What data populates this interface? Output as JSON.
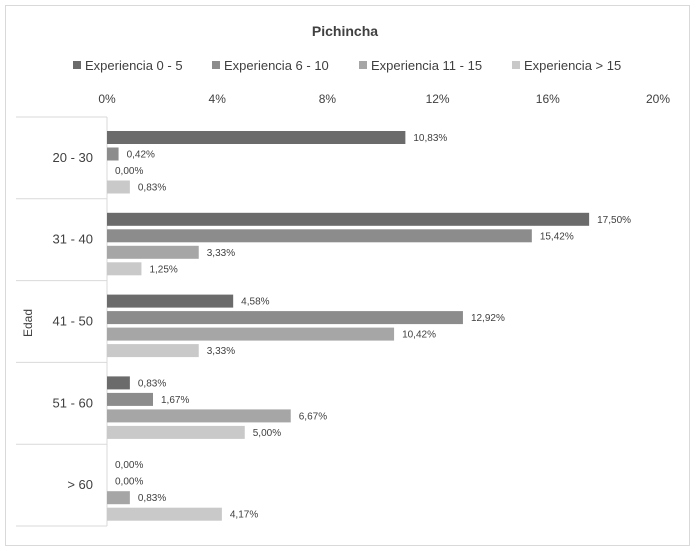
{
  "chart_data": {
    "type": "bar",
    "orientation": "horizontal",
    "title": "Pichincha",
    "ylabel": "Edad",
    "xlabel": "",
    "categories": [
      "20 - 30",
      "31 - 40",
      "41 - 50",
      "51 - 60",
      "> 60"
    ],
    "series": [
      {
        "name": "Experiencia 0 - 5",
        "values": [
          10.83,
          17.5,
          4.58,
          0.83,
          0.0
        ],
        "labels": [
          "10,83%",
          "17,50%",
          "4,58%",
          "0,83%",
          "0,00%"
        ],
        "color": "#6b6b6b"
      },
      {
        "name": "Experiencia 6 - 10",
        "values": [
          0.42,
          15.42,
          12.92,
          1.67,
          0.0
        ],
        "labels": [
          "0,42%",
          "15,42%",
          "12,92%",
          "1,67%",
          "0,00%"
        ],
        "color": "#8c8c8c"
      },
      {
        "name": "Experiencia 11 - 15",
        "values": [
          0.0,
          3.33,
          10.42,
          6.67,
          0.83
        ],
        "labels": [
          "0,00%",
          "3,33%",
          "10,42%",
          "6,67%",
          "0,83%"
        ],
        "color": "#a6a6a6"
      },
      {
        "name": "Experiencia > 15",
        "values": [
          0.83,
          1.25,
          3.33,
          5.0,
          4.17
        ],
        "labels": [
          "0,83%",
          "1,25%",
          "3,33%",
          "5,00%",
          "4,17%"
        ],
        "color": "#c9c9c9"
      }
    ],
    "xlim": [
      0,
      20
    ],
    "xticks": [
      "0%",
      "4%",
      "8%",
      "12%",
      "16%",
      "20%"
    ],
    "x_tick_values": [
      0,
      4,
      8,
      12,
      16,
      20
    ],
    "legend_position": "top",
    "grid": false
  }
}
